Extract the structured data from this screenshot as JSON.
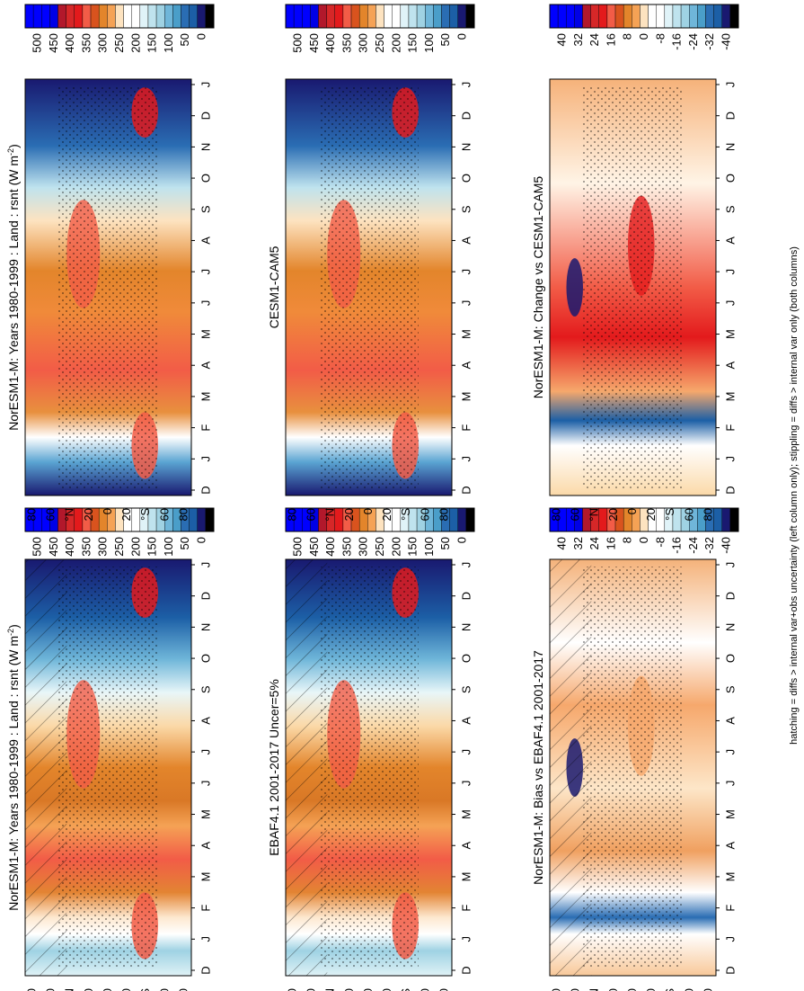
{
  "figure": {
    "footer": "hatching = diffs > internal var+obs uncertainty (left column only); stippling = diffs > internal var only (both columns)"
  },
  "chart_data": [
    {
      "type": "heatmap",
      "panel": "top-left",
      "title": "NorESM1-M: Years 1980-1999 : Land : rsnt (W m",
      "title_sup": "-2",
      "title_close": ")",
      "x": [
        "D",
        "J",
        "F",
        "M",
        "A",
        "M",
        "J",
        "J",
        "A",
        "S",
        "O",
        "N",
        "D",
        "J"
      ],
      "y": [
        "80",
        "60",
        "°N",
        "20",
        "0",
        "20",
        "°S",
        "60",
        "80"
      ],
      "colorbar": [
        "500",
        "450",
        "400",
        "350",
        "300",
        "250",
        "200",
        "150",
        "100",
        "50",
        "0"
      ],
      "overlays": [
        "hatching",
        "stippling"
      ]
    },
    {
      "type": "heatmap",
      "panel": "top-right",
      "title": "NorESM1-M: Years 1980-1999 : Land : rsnt (W m",
      "title_sup": "-2",
      "title_close": ")",
      "x": [
        "D",
        "J",
        "F",
        "M",
        "A",
        "M",
        "J",
        "J",
        "A",
        "S",
        "O",
        "N",
        "D",
        "J"
      ],
      "y": [
        "80",
        "60",
        "°N",
        "20",
        "0",
        "20",
        "°S",
        "60",
        "80"
      ],
      "colorbar": [
        "500",
        "450",
        "400",
        "350",
        "300",
        "250",
        "200",
        "150",
        "100",
        "50",
        "0"
      ],
      "overlays": [
        "stippling"
      ]
    },
    {
      "type": "heatmap",
      "panel": "middle-left",
      "title": "EBAF4.1 2001-2017 Uncer=5%",
      "x": [
        "D",
        "J",
        "F",
        "M",
        "A",
        "M",
        "J",
        "J",
        "A",
        "S",
        "O",
        "N",
        "D",
        "J"
      ],
      "y": [
        "80",
        "60",
        "°N",
        "20",
        "0",
        "20",
        "°S",
        "60",
        "80"
      ],
      "colorbar": [
        "500",
        "450",
        "400",
        "350",
        "300",
        "250",
        "200",
        "150",
        "100",
        "50",
        "0"
      ],
      "overlays": [
        "hatching",
        "stippling"
      ]
    },
    {
      "type": "heatmap",
      "panel": "middle-right",
      "title": "CESM1-CAM5",
      "x": [
        "D",
        "J",
        "F",
        "M",
        "A",
        "M",
        "J",
        "J",
        "A",
        "S",
        "O",
        "N",
        "D",
        "J"
      ],
      "y": [
        "80",
        "60",
        "°N",
        "20",
        "0",
        "20",
        "°S",
        "60",
        "80"
      ],
      "colorbar": [
        "500",
        "450",
        "400",
        "350",
        "300",
        "250",
        "200",
        "150",
        "100",
        "50",
        "0"
      ],
      "overlays": [
        "stippling"
      ]
    },
    {
      "type": "heatmap",
      "panel": "bottom-left",
      "title": "NorESM1-M: Bias vs EBAF4.1 2001-2017",
      "x": [
        "D",
        "J",
        "F",
        "M",
        "A",
        "M",
        "J",
        "J",
        "A",
        "S",
        "O",
        "N",
        "D",
        "J"
      ],
      "y": [
        "80",
        "60",
        "°N",
        "20",
        "0",
        "20",
        "°S",
        "60",
        "80"
      ],
      "colorbar": [
        "40",
        "32",
        "24",
        "16",
        "8",
        "0",
        "-8",
        "-16",
        "-24",
        "-32",
        "-40"
      ],
      "overlays": [
        "hatching",
        "stippling"
      ]
    },
    {
      "type": "heatmap",
      "panel": "bottom-right",
      "title": "NorESM1-M: Change vs CESM1-CAM5",
      "x": [
        "D",
        "J",
        "F",
        "M",
        "A",
        "M",
        "J",
        "J",
        "A",
        "S",
        "O",
        "N",
        "D",
        "J"
      ],
      "y": [
        "80",
        "60",
        "°N",
        "20",
        "0",
        "20",
        "°S",
        "60",
        "80"
      ],
      "colorbar": [
        "40",
        "32",
        "24",
        "16",
        "8",
        "0",
        "-8",
        "-16",
        "-24",
        "-32",
        "-40"
      ],
      "overlays": [
        "stippling"
      ]
    }
  ]
}
